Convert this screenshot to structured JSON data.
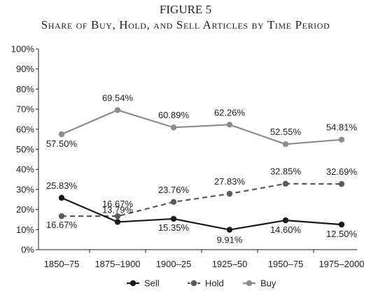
{
  "figure": {
    "label": "FIGURE 5",
    "title": "Share of Buy, Hold, and Sell Articles by Time Period"
  },
  "chart_data": {
    "type": "line",
    "categories": [
      "1850–75",
      "1875–1900",
      "1900–25",
      "1925–50",
      "1950–75",
      "1975–2000"
    ],
    "ylim": [
      0,
      100
    ],
    "yticks": [
      0,
      10,
      20,
      30,
      40,
      50,
      60,
      70,
      80,
      90,
      100
    ],
    "ytick_labels": [
      "0%",
      "10%",
      "20%",
      "30%",
      "40%",
      "50%",
      "60%",
      "70%",
      "80%",
      "90%",
      "100%"
    ],
    "grid": false,
    "legend_position": "bottom",
    "series": [
      {
        "name": "Sell",
        "color": "#1a1a1a",
        "line_style": "solid",
        "values": [
          25.83,
          13.79,
          15.35,
          9.91,
          14.6,
          12.5
        ],
        "labels": [
          "25.83%",
          "13.79%",
          "15.35%",
          "9.91%",
          "14.60%",
          "12.50%"
        ]
      },
      {
        "name": "Hold",
        "color": "#5a5a5a",
        "line_style": "dashed",
        "values": [
          16.67,
          16.67,
          23.76,
          27.83,
          32.85,
          32.69
        ],
        "labels": [
          "16.67%",
          "16.67%",
          "23.76%",
          "27.83%",
          "32.85%",
          "32.69%"
        ]
      },
      {
        "name": "Buy",
        "color": "#8c8c8c",
        "line_style": "solid",
        "values": [
          57.5,
          69.54,
          60.89,
          62.26,
          52.55,
          54.81
        ],
        "labels": [
          "57.50%",
          "69.54%",
          "60.89%",
          "62.26%",
          "52.55%",
          "54.81%"
        ]
      }
    ]
  }
}
